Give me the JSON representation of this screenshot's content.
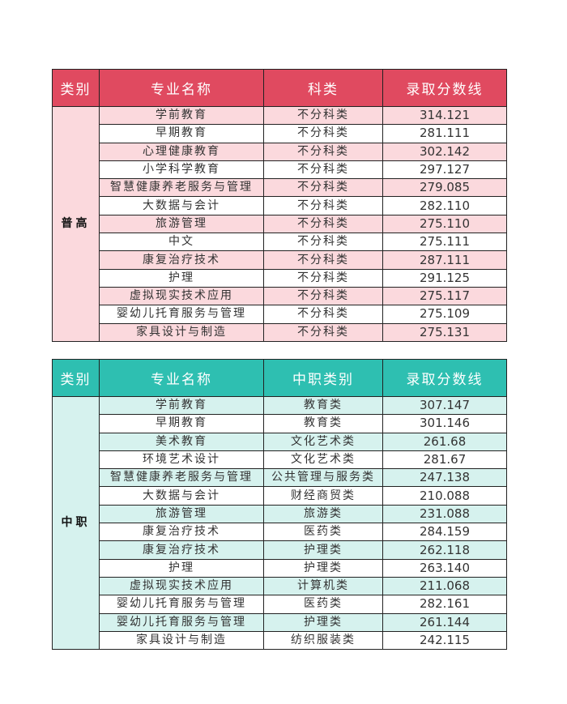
{
  "table1": {
    "headers": [
      "类别",
      "专业名称",
      "科类",
      "录取分数线"
    ],
    "category": "普高",
    "rows": [
      [
        "学前教育",
        "不分科类",
        "314.121"
      ],
      [
        "早期教育",
        "不分科类",
        "281.111"
      ],
      [
        "心理健康教育",
        "不分科类",
        "302.142"
      ],
      [
        "小学科学教育",
        "不分科类",
        "297.127"
      ],
      [
        "智慧健康养老服务与管理",
        "不分科类",
        "279.085"
      ],
      [
        "大数据与会计",
        "不分科类",
        "282.110"
      ],
      [
        "旅游管理",
        "不分科类",
        "275.110"
      ],
      [
        "中文",
        "不分科类",
        "275.111"
      ],
      [
        "康复治疗技术",
        "不分科类",
        "287.111"
      ],
      [
        "护理",
        "不分科类",
        "291.125"
      ],
      [
        "虚拟现实技术应用",
        "不分科类",
        "275.117"
      ],
      [
        "婴幼儿托育服务与管理",
        "不分科类",
        "275.109"
      ],
      [
        "家具设计与制造",
        "不分科类",
        "275.131"
      ]
    ]
  },
  "table2": {
    "headers": [
      "类别",
      "专业名称",
      "中职类别",
      "录取分数线"
    ],
    "category": "中职",
    "rows": [
      [
        "学前教育",
        "教育类",
        "307.147"
      ],
      [
        "早期教育",
        "教育类",
        "301.146"
      ],
      [
        "美术教育",
        "文化艺术类",
        "261.68"
      ],
      [
        "环境艺术设计",
        "文化艺术类",
        "281.67"
      ],
      [
        "智慧健康养老服务与管理",
        "公共管理与服务类",
        "247.138"
      ],
      [
        "大数据与会计",
        "财经商贸类",
        "210.088"
      ],
      [
        "旅游管理",
        "旅游类",
        "231.088"
      ],
      [
        "康复治疗技术",
        "医药类",
        "284.159"
      ],
      [
        "康复治疗技术",
        "护理类",
        "262.118"
      ],
      [
        "护理",
        "护理类",
        "263.140"
      ],
      [
        "虚拟现实技术应用",
        "计算机类",
        "211.068"
      ],
      [
        "婴幼儿托育服务与管理",
        "医药类",
        "282.161"
      ],
      [
        "婴幼儿托育服务与管理",
        "护理类",
        "261.144"
      ],
      [
        "家具设计与制造",
        "纺织服装类",
        "242.115"
      ]
    ]
  }
}
